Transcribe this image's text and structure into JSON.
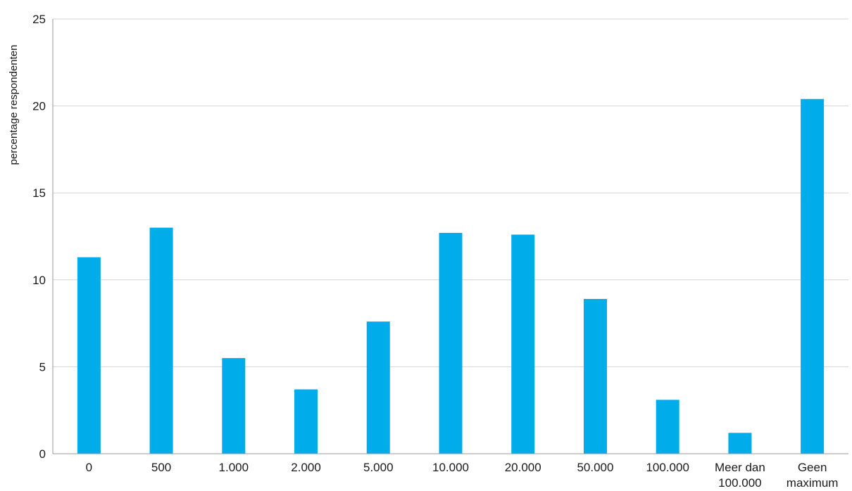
{
  "chart_data": {
    "type": "bar",
    "title": "",
    "xlabel": "",
    "ylabel": "percentage respondenten",
    "categories": [
      [
        "0"
      ],
      [
        "500"
      ],
      [
        "1.000"
      ],
      [
        "2.000"
      ],
      [
        "5.000"
      ],
      [
        "10.000"
      ],
      [
        "20.000"
      ],
      [
        "50.000"
      ],
      [
        "100.000"
      ],
      [
        "Meer dan",
        "100.000"
      ],
      [
        "Geen",
        "maximum"
      ]
    ],
    "values": [
      11.3,
      13.0,
      5.5,
      3.7,
      7.6,
      12.7,
      12.6,
      8.9,
      3.1,
      1.2,
      20.4
    ],
    "ylim": [
      0,
      25
    ],
    "yticks": [
      0,
      5,
      10,
      15,
      20,
      25
    ],
    "grid": true,
    "legend": "none",
    "colors": {
      "bar": "#00adea",
      "grid": "#d4d4d4",
      "axis": "#9a9a9a",
      "text": "#1a1a1a"
    }
  }
}
